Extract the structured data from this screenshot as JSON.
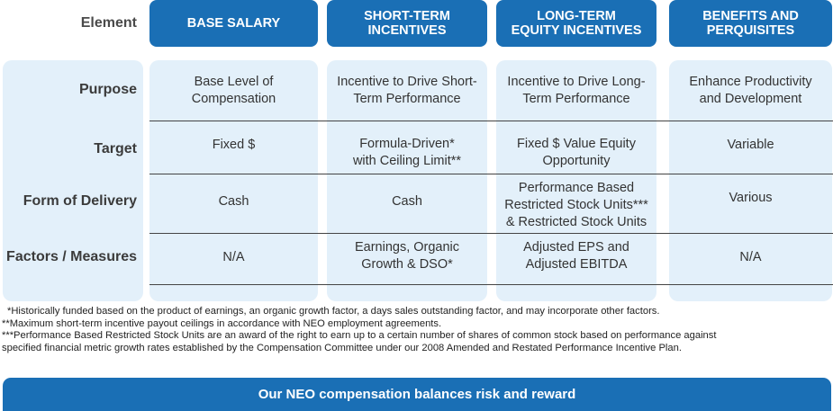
{
  "header": {
    "element_label": "Element",
    "columns": [
      {
        "label": "BASE SALARY"
      },
      {
        "label": "SHORT-TERM\nINCENTIVES"
      },
      {
        "label": "LONG-TERM\nEQUITY INCENTIVES"
      },
      {
        "label": "BENEFITS AND\nPERQUISITES"
      }
    ]
  },
  "rows": [
    {
      "label": "Purpose",
      "cells": [
        "Base Level of\nCompensation",
        "Incentive to Drive Short-\nTerm Performance",
        "Incentive to Drive Long-\nTerm Performance",
        "Enhance Productivity\nand Development"
      ]
    },
    {
      "label": "Target",
      "cells": [
        "Fixed $",
        "Formula-Driven*\nwith Ceiling Limit**",
        "Fixed $ Value Equity\nOpportunity",
        "Variable"
      ]
    },
    {
      "label": "Form of Delivery",
      "cells": [
        "Cash",
        "Cash",
        "Performance Based\nRestricted Stock Units***\n& Restricted Stock Units",
        "Various"
      ]
    },
    {
      "label": "Factors / Measures",
      "cells": [
        "N/A",
        "Earnings, Organic\nGrowth & DSO*",
        "Adjusted EPS and\nAdjusted EBITDA",
        "N/A"
      ]
    }
  ],
  "footnotes": [
    "*Historically funded based on the product of earnings, an organic growth factor, a days sales outstanding factor, and may incorporate other factors.",
    "**Maximum short-term incentive payout ceilings in accordance with NEO employment agreements.",
    "***Performance Based Restricted Stock Units are an award of the right to earn up to a certain number of shares of common stock based on performance against",
    "specified financial metric growth rates established by the Compensation Committee under our 2008 Amended and Restated Performance Incentive Plan."
  ],
  "banner": {
    "text": "Our NEO compensation balances risk and reward"
  },
  "colors": {
    "accent": "#1a6fb5",
    "panel": "#e3f0fa"
  }
}
